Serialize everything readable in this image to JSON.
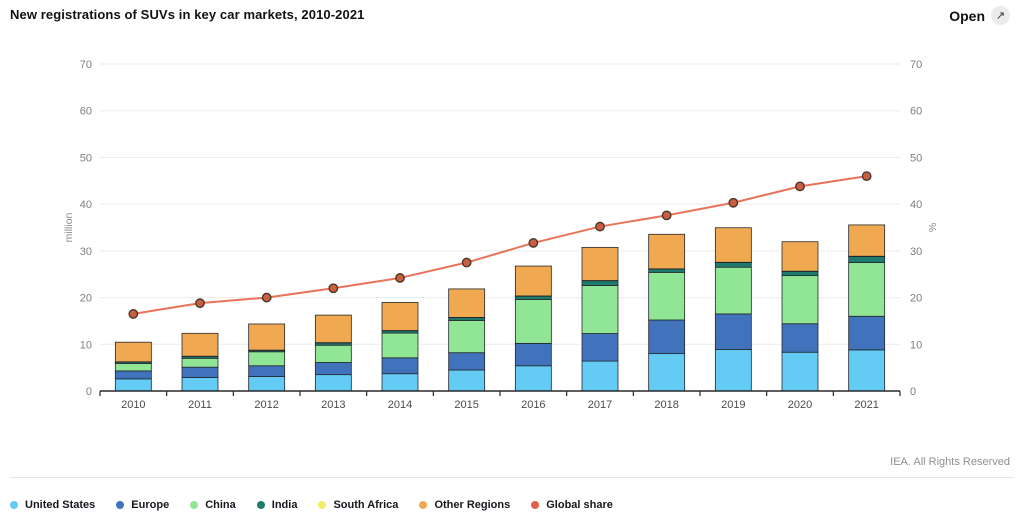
{
  "header": {
    "open_label": "Open"
  },
  "footer": {
    "copyright": "IEA. All Rights Reserved"
  },
  "chart_data": {
    "type": "bar",
    "subtype": "stacked-bars-with-line",
    "title": "New registrations of SUVs in key car markets, 2010-2021",
    "categories": [
      "2010",
      "2011",
      "2012",
      "2013",
      "2014",
      "2015",
      "2016",
      "2017",
      "2018",
      "2019",
      "2020",
      "2021"
    ],
    "bar_series": [
      {
        "name": "United States",
        "color": "#63CBF4",
        "values": [
          2.6,
          2.9,
          3.1,
          3.5,
          3.7,
          4.5,
          5.4,
          6.4,
          8.0,
          8.9,
          8.3,
          8.8
        ]
      },
      {
        "name": "Europe",
        "color": "#4173BC",
        "values": [
          1.7,
          2.2,
          2.3,
          2.6,
          3.4,
          3.7,
          4.8,
          5.9,
          7.2,
          7.6,
          6.1,
          7.2
        ]
      },
      {
        "name": "China",
        "color": "#90E694",
        "values": [
          1.6,
          1.9,
          3.0,
          3.7,
          5.3,
          6.9,
          9.4,
          10.3,
          10.2,
          10.0,
          10.3,
          11.5
        ]
      },
      {
        "name": "India",
        "color": "#1E7C6F",
        "values": [
          0.3,
          0.4,
          0.3,
          0.5,
          0.5,
          0.6,
          0.7,
          1.0,
          0.7,
          1.0,
          0.9,
          1.3
        ]
      },
      {
        "name": "South Africa",
        "color": "#F5EB66",
        "values": [
          0.05,
          0.05,
          0.05,
          0.05,
          0.05,
          0.05,
          0.05,
          0.05,
          0.05,
          0.05,
          0.05,
          0.05
        ]
      },
      {
        "name": "Other Regions",
        "color": "#F1A951",
        "values": [
          4.2,
          4.9,
          5.6,
          5.9,
          6.0,
          6.1,
          6.4,
          7.1,
          7.4,
          7.4,
          6.3,
          6.7
        ]
      }
    ],
    "line_series": {
      "name": "Global share",
      "color": "#E8735A",
      "marker_fill": "#C95F3F",
      "marker_stroke": "#4A362C",
      "legend_color": "#E2604A",
      "values": [
        16.5,
        18.8,
        20.0,
        22.0,
        24.2,
        27.5,
        31.7,
        35.2,
        37.6,
        40.3,
        43.8,
        46.0
      ]
    },
    "left_axis": {
      "label": "million",
      "min": 0,
      "max": 70,
      "step": 10
    },
    "right_axis": {
      "label": "%",
      "min": 0,
      "max": 70,
      "step": 10
    },
    "grid": true,
    "legend_position": "bottom-left"
  }
}
